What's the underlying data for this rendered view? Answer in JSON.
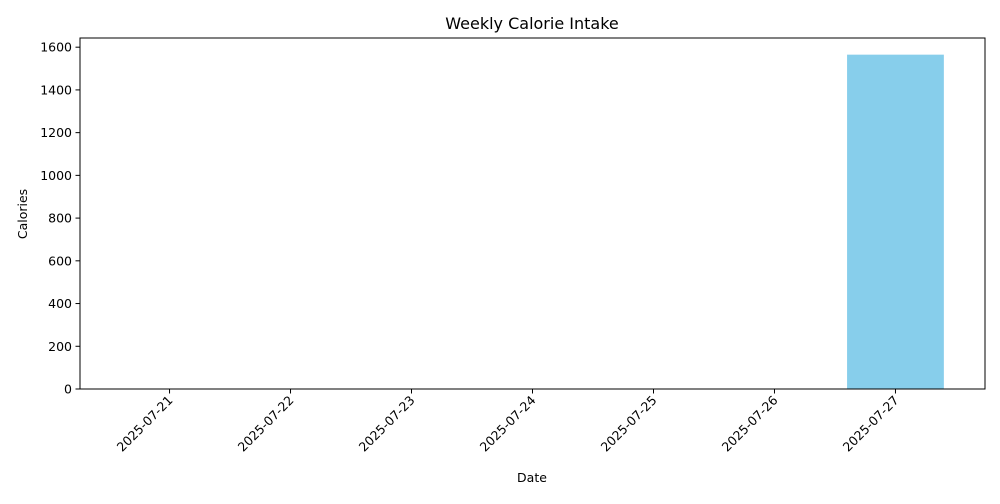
{
  "chart_data": {
    "type": "bar",
    "title": "Weekly Calorie Intake",
    "xlabel": "Date",
    "ylabel": "Calories",
    "categories": [
      "2025-07-21",
      "2025-07-22",
      "2025-07-23",
      "2025-07-24",
      "2025-07-25",
      "2025-07-26",
      "2025-07-27"
    ],
    "values": [
      0,
      0,
      0,
      0,
      0,
      0,
      1565
    ],
    "ylim": [
      0,
      1643
    ],
    "yticks": [
      0,
      200,
      400,
      600,
      800,
      1000,
      1200,
      1400,
      1600
    ],
    "bar_color": "#87CEEB",
    "grid": false,
    "legend": "none"
  }
}
